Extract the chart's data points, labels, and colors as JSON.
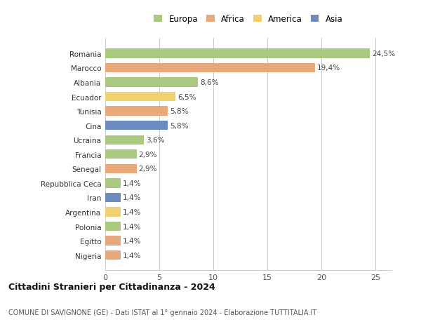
{
  "categories": [
    "Romania",
    "Marocco",
    "Albania",
    "Ecuador",
    "Tunisia",
    "Cina",
    "Ucraina",
    "Francia",
    "Senegal",
    "Repubblica Ceca",
    "Iran",
    "Argentina",
    "Polonia",
    "Egitto",
    "Nigeria"
  ],
  "values": [
    24.5,
    19.4,
    8.6,
    6.5,
    5.8,
    5.8,
    3.6,
    2.9,
    2.9,
    1.4,
    1.4,
    1.4,
    1.4,
    1.4,
    1.4
  ],
  "labels": [
    "24,5%",
    "19,4%",
    "8,6%",
    "6,5%",
    "5,8%",
    "5,8%",
    "3,6%",
    "2,9%",
    "2,9%",
    "1,4%",
    "1,4%",
    "1,4%",
    "1,4%",
    "1,4%",
    "1,4%"
  ],
  "colors": [
    "#a8c97f",
    "#e8a87c",
    "#a8c97f",
    "#f0d070",
    "#e8a87c",
    "#6b8bbf",
    "#a8c97f",
    "#a8c97f",
    "#e8a87c",
    "#a8c97f",
    "#6b8bbf",
    "#f0d070",
    "#a8c97f",
    "#e8a87c",
    "#e8a87c"
  ],
  "legend_labels": [
    "Europa",
    "Africa",
    "America",
    "Asia"
  ],
  "legend_colors": [
    "#a8c97f",
    "#e8a87c",
    "#f0d070",
    "#6b8bbf"
  ],
  "title": "Cittadini Stranieri per Cittadinanza - 2024",
  "subtitle": "COMUNE DI SAVIGNONE (GE) - Dati ISTAT al 1° gennaio 2024 - Elaborazione TUTTITALIA.IT",
  "xlim": [
    0,
    26.5
  ],
  "xticks": [
    0,
    5,
    10,
    15,
    20,
    25
  ],
  "bar_height": 0.65,
  "background_color": "#ffffff",
  "grid_color": "#cccccc"
}
